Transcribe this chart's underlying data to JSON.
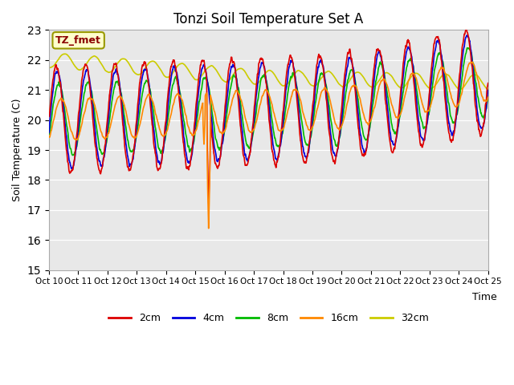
{
  "title": "Tonzi Soil Temperature Set A",
  "ylabel": "Soil Temperature (C)",
  "xlabel": "Time",
  "ylim": [
    15.0,
    23.0
  ],
  "yticks": [
    15.0,
    16.0,
    17.0,
    18.0,
    19.0,
    20.0,
    21.0,
    22.0,
    23.0
  ],
  "xtick_labels": [
    "Oct 10",
    "Oct 11",
    "Oct 12",
    "Oct 13",
    "Oct 14",
    "Oct 15",
    "Oct 16",
    "Oct 17",
    "Oct 18",
    "Oct 19",
    "Oct 20",
    "Oct 21",
    "Oct 22",
    "Oct 23",
    "Oct 24",
    "Oct 25"
  ],
  "legend_box_label": "TZ_fmet",
  "plot_bg": "#e8e8e8",
  "fig_bg": "#ffffff",
  "colors": {
    "2cm": "#dd0000",
    "4cm": "#0000dd",
    "8cm": "#00bb00",
    "16cm": "#ff8800",
    "32cm": "#cccc00"
  },
  "line_width": 1.2,
  "title_fontsize": 12
}
